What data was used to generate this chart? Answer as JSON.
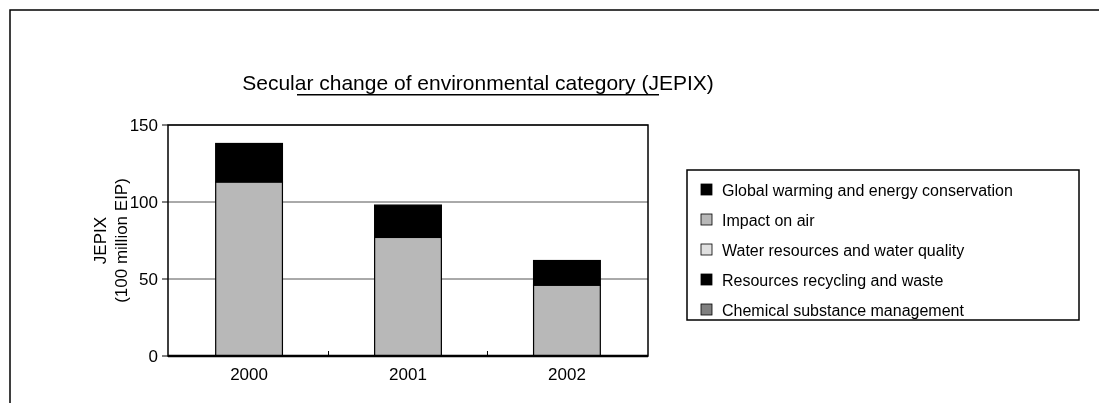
{
  "chart_data": {
    "type": "bar",
    "title": "Secular change of environmental category (JEPIX)",
    "ylabel": "JEPIX\n(100 million EIP)",
    "categories": [
      "2000",
      "2001",
      "2002"
    ],
    "stacked": true,
    "series": [
      {
        "name": "Chemical substance management",
        "color": "#808080",
        "values": [
          0,
          0,
          0
        ]
      },
      {
        "name": "Resources recycling and waste",
        "color": "#000000",
        "values": [
          0,
          0,
          0
        ]
      },
      {
        "name": "Water resources and water quality",
        "color": "#e0e0e0",
        "values": [
          0,
          0,
          0
        ]
      },
      {
        "name": "Impact on air",
        "color": "#b8b8b8",
        "values": [
          113,
          77,
          46
        ]
      },
      {
        "name": "Global warming and energy conservation",
        "color": "#000000",
        "values": [
          25,
          21,
          16
        ]
      }
    ],
    "ylim": [
      0,
      150
    ],
    "yticks": [
      0,
      50,
      100,
      150
    ],
    "grid": "y",
    "legend": "right"
  }
}
